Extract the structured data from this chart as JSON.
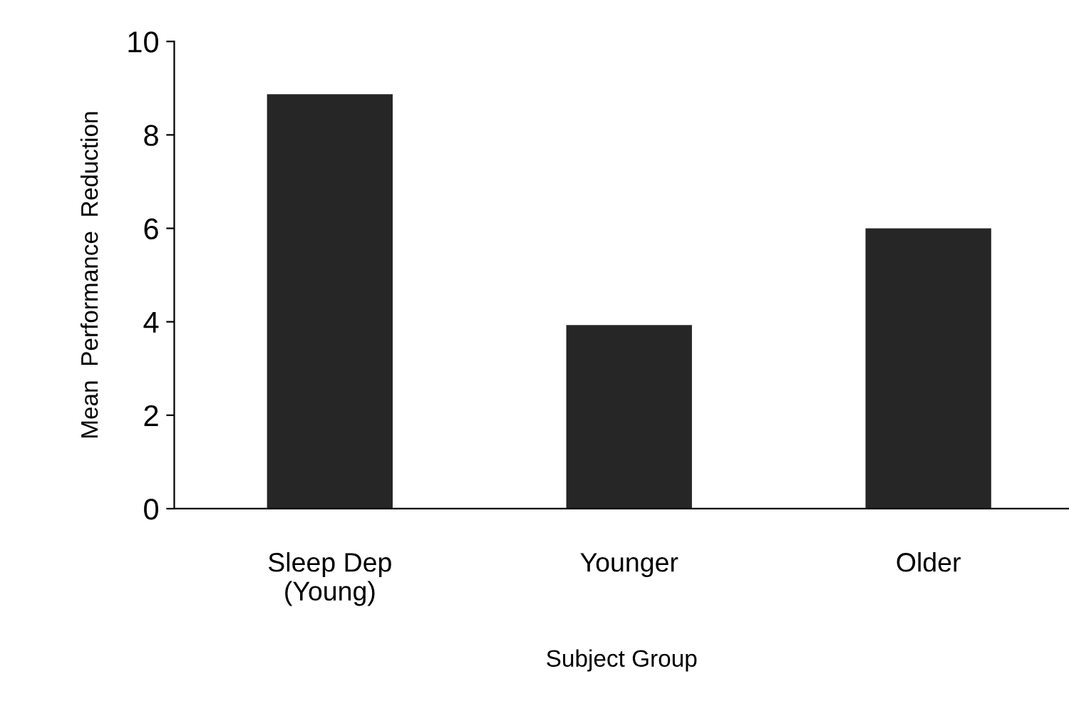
{
  "chart_data": {
    "type": "bar",
    "xlabel": "Subject Group",
    "ylabel": "Mean  Performance  Reduction",
    "categories": [
      "Sleep Dep\n(Young)",
      "Younger",
      "Older"
    ],
    "values": [
      8.87,
      3.93,
      6.0
    ],
    "color": "#262626",
    "ylim": [
      0,
      10
    ],
    "yticks": [
      0,
      2,
      4,
      6,
      8,
      10
    ],
    "grid": false
  }
}
